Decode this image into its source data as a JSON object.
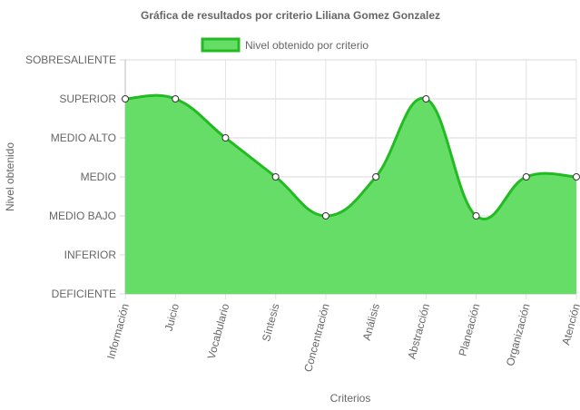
{
  "chart_data": {
    "type": "area",
    "title": "Gráfica de resultados por criterio Liliana Gomez Gonzalez",
    "xlabel": "Criterios",
    "ylabel": "Nivel obtenido",
    "y_levels": [
      "DEFICIENTE",
      "INFERIOR",
      "MEDIO BAJO",
      "MEDIO",
      "MEDIO ALTO",
      "SUPERIOR",
      "SOBRESALIENTE"
    ],
    "categories": [
      "Información",
      "Juicio",
      "Vocabulario",
      "Síntesis",
      "Concentración",
      "Análisis",
      "Abstracción",
      "Planeación",
      "Organización",
      "Atención"
    ],
    "series": [
      {
        "name": "Nivel obtenido por criterio",
        "values": [
          "SUPERIOR",
          "SUPERIOR",
          "MEDIO ALTO",
          "MEDIO",
          "MEDIO BAJO",
          "MEDIO",
          "SUPERIOR",
          "MEDIO BAJO",
          "MEDIO",
          "MEDIO"
        ],
        "fill_color": "#66dd66",
        "line_color": "#22bb22"
      }
    ],
    "grid": true,
    "legend_position": "top"
  }
}
